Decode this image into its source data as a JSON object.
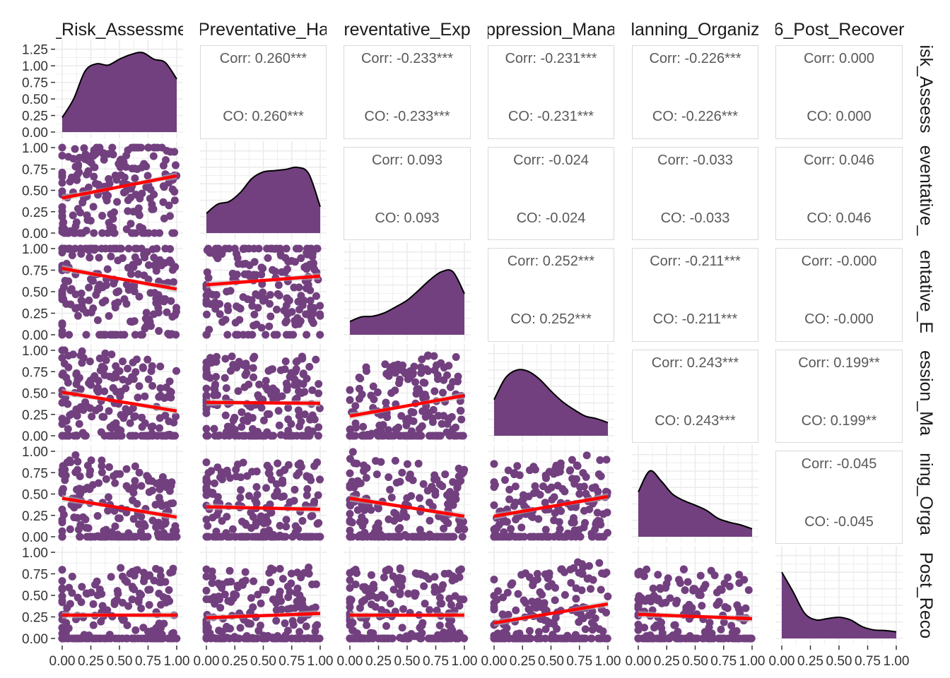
{
  "chart_data": {
    "type": "scatter-matrix",
    "variables_shown": [
      "_Risk_Assessme",
      "Preventative_Ha",
      "reventative_Exp",
      "ppression_Mana",
      "lanning_Organiz",
      "6_Post_Recover"
    ],
    "row_labels_shown": [
      "isk_Assess",
      "eventative_",
      "entative_E",
      "ession_Ma",
      "ning_Orga",
      "Post_Reco"
    ],
    "density_y_ticks": [
      "0.00",
      "0.25",
      "0.50",
      "0.75",
      "1.00",
      "1.25"
    ],
    "axis_ticks": [
      "0.00",
      "0.25",
      "0.50",
      "0.75",
      "1.00"
    ],
    "bottom_tick_labels": [
      "0.00",
      "0.25",
      "0.50",
      "0.75",
      "1.00"
    ],
    "density_ylim": [
      0,
      1.3
    ],
    "axis_range": [
      0,
      1
    ],
    "correlations": [
      {
        "row": 0,
        "col": 1,
        "corr": "Corr: 0.260***",
        "co": "CO: 0.260***",
        "value": 0.26
      },
      {
        "row": 0,
        "col": 2,
        "corr": "Corr: -0.233***",
        "co": "CO: -0.233***",
        "value": -0.233
      },
      {
        "row": 0,
        "col": 3,
        "corr": "Corr: -0.231***",
        "co": "CO: -0.231***",
        "value": -0.231
      },
      {
        "row": 0,
        "col": 4,
        "corr": "Corr: -0.226***",
        "co": "CO: -0.226***",
        "value": -0.226
      },
      {
        "row": 0,
        "col": 5,
        "corr": "Corr: 0.000",
        "co": "CO: 0.000",
        "value": 0.0
      },
      {
        "row": 1,
        "col": 2,
        "corr": "Corr: 0.093",
        "co": "CO: 0.093",
        "value": 0.093
      },
      {
        "row": 1,
        "col": 3,
        "corr": "Corr: -0.024",
        "co": "CO: -0.024",
        "value": -0.024
      },
      {
        "row": 1,
        "col": 4,
        "corr": "Corr: -0.033",
        "co": "CO: -0.033",
        "value": -0.033
      },
      {
        "row": 1,
        "col": 5,
        "corr": "Corr: 0.046",
        "co": "CO: 0.046",
        "value": 0.046
      },
      {
        "row": 2,
        "col": 3,
        "corr": "Corr: 0.252***",
        "co": "CO: 0.252***",
        "value": 0.252
      },
      {
        "row": 2,
        "col": 4,
        "corr": "Corr: -0.211***",
        "co": "CO: -0.211***",
        "value": -0.211
      },
      {
        "row": 2,
        "col": 5,
        "corr": "Corr: -0.000",
        "co": "CO: -0.000",
        "value": -0.0
      },
      {
        "row": 3,
        "col": 4,
        "corr": "Corr: 0.243***",
        "co": "CO: 0.243***",
        "value": 0.243
      },
      {
        "row": 3,
        "col": 5,
        "corr": "Corr: 0.199**",
        "co": "CO: 0.199**",
        "value": 0.199
      },
      {
        "row": 4,
        "col": 5,
        "corr": "Corr: -0.045",
        "co": "CO: -0.045",
        "value": -0.045
      }
    ],
    "densities": [
      {
        "var": 0,
        "x": [
          0,
          0.1,
          0.2,
          0.3,
          0.4,
          0.5,
          0.6,
          0.7,
          0.8,
          0.9,
          1.0
        ],
        "y": [
          0.22,
          0.5,
          0.92,
          1.03,
          1.01,
          1.1,
          1.17,
          1.2,
          1.1,
          1.05,
          0.8
        ]
      },
      {
        "var": 1,
        "x": [
          0,
          0.1,
          0.2,
          0.3,
          0.4,
          0.5,
          0.6,
          0.7,
          0.8,
          0.9,
          1.0
        ],
        "y": [
          0.3,
          0.44,
          0.48,
          0.62,
          0.83,
          0.93,
          0.95,
          0.97,
          1.0,
          0.9,
          0.4
        ]
      },
      {
        "var": 2,
        "x": [
          0,
          0.1,
          0.2,
          0.3,
          0.4,
          0.5,
          0.6,
          0.7,
          0.8,
          0.9,
          1.0
        ],
        "y": [
          0.2,
          0.27,
          0.28,
          0.33,
          0.42,
          0.52,
          0.67,
          0.83,
          0.95,
          0.95,
          0.62
        ]
      },
      {
        "var": 3,
        "x": [
          0,
          0.1,
          0.2,
          0.3,
          0.4,
          0.5,
          0.6,
          0.7,
          0.8,
          0.9,
          1.0
        ],
        "y": [
          0.55,
          0.88,
          1.0,
          0.98,
          0.86,
          0.68,
          0.52,
          0.4,
          0.3,
          0.26,
          0.2
        ]
      },
      {
        "var": 4,
        "x": [
          0,
          0.1,
          0.2,
          0.3,
          0.4,
          0.5,
          0.6,
          0.7,
          0.8,
          0.9,
          1.0
        ],
        "y": [
          0.68,
          1.0,
          0.85,
          0.65,
          0.55,
          0.48,
          0.4,
          0.28,
          0.22,
          0.18,
          0.12
        ]
      },
      {
        "var": 5,
        "x": [
          0,
          0.1,
          0.2,
          0.3,
          0.4,
          0.5,
          0.6,
          0.7,
          0.8,
          0.9,
          1.0
        ],
        "y": [
          1.0,
          0.7,
          0.38,
          0.28,
          0.3,
          0.32,
          0.28,
          0.18,
          0.13,
          0.12,
          0.1
        ]
      }
    ],
    "regressions": [
      {
        "row": 1,
        "col": 0,
        "y0": 0.41,
        "y1": 0.67
      },
      {
        "row": 2,
        "col": 0,
        "y0": 0.77,
        "y1": 0.53
      },
      {
        "row": 2,
        "col": 1,
        "y0": 0.58,
        "y1": 0.68
      },
      {
        "row": 3,
        "col": 0,
        "y0": 0.51,
        "y1": 0.29
      },
      {
        "row": 3,
        "col": 1,
        "y0": 0.39,
        "y1": 0.38
      },
      {
        "row": 3,
        "col": 2,
        "y0": 0.23,
        "y1": 0.47
      },
      {
        "row": 4,
        "col": 0,
        "y0": 0.45,
        "y1": 0.23
      },
      {
        "row": 4,
        "col": 1,
        "y0": 0.35,
        "y1": 0.32
      },
      {
        "row": 4,
        "col": 2,
        "y0": 0.45,
        "y1": 0.24
      },
      {
        "row": 4,
        "col": 3,
        "y0": 0.24,
        "y1": 0.47
      },
      {
        "row": 5,
        "col": 0,
        "y0": 0.27,
        "y1": 0.27
      },
      {
        "row": 5,
        "col": 1,
        "y0": 0.24,
        "y1": 0.29
      },
      {
        "row": 5,
        "col": 2,
        "y0": 0.27,
        "y1": 0.27
      },
      {
        "row": 5,
        "col": 3,
        "y0": 0.18,
        "y1": 0.4
      },
      {
        "row": 5,
        "col": 4,
        "y0": 0.28,
        "y1": 0.23
      }
    ],
    "points_per_panel": 200,
    "colors": {
      "fill": "#72407F",
      "regression": "#FF0000",
      "panel_border": "#D9D9D9",
      "grid": "#EBEBEB",
      "corr_text": "#595959",
      "axis_text": "#333333",
      "strip_text": "#1A1A1A",
      "ribbon": "#BDBDBD"
    }
  }
}
